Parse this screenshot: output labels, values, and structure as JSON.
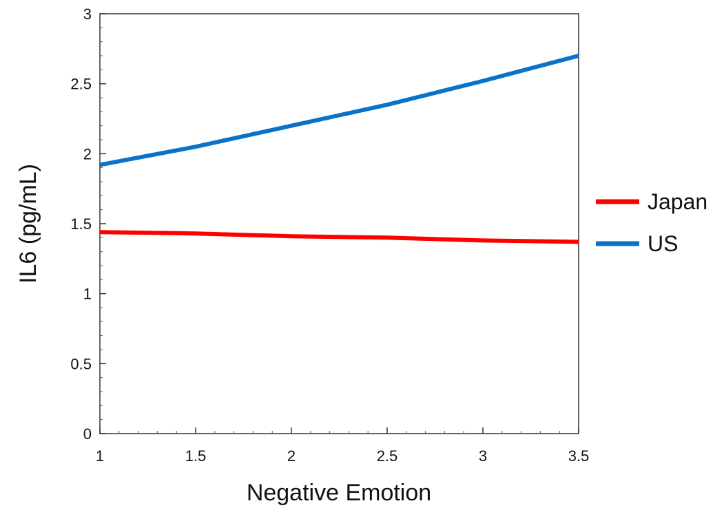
{
  "chart_data": {
    "type": "line",
    "xlabel": "Negative Emotion",
    "ylabel": "IL6 (pg/mL)",
    "xlim": [
      1,
      3.5
    ],
    "ylim": [
      0,
      3
    ],
    "x_ticks": [
      "1",
      "1.5",
      "2",
      "2.5",
      "3",
      "3.5"
    ],
    "y_ticks": [
      "0",
      "0.5",
      "1",
      "1.5",
      "2",
      "2.5",
      "3"
    ],
    "x_tick_values": [
      1,
      1.5,
      2,
      2.5,
      3,
      3.5
    ],
    "y_tick_values": [
      0,
      0.5,
      1,
      1.5,
      2,
      2.5,
      3
    ],
    "grid": false,
    "legend_position": "right",
    "series": [
      {
        "name": "Japan",
        "color": "#ff0000",
        "x": [
          1,
          1.5,
          2,
          2.5,
          3,
          3.5
        ],
        "values": [
          1.44,
          1.43,
          1.41,
          1.4,
          1.38,
          1.37
        ]
      },
      {
        "name": "US",
        "color": "#0a72c8",
        "x": [
          1,
          1.5,
          2,
          2.5,
          3,
          3.5
        ],
        "values": [
          1.92,
          2.05,
          2.2,
          2.35,
          2.52,
          2.7
        ]
      }
    ]
  }
}
